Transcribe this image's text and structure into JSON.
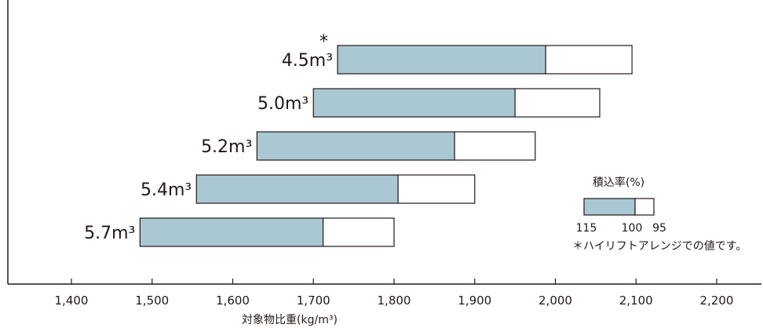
{
  "chart_data": {
    "type": "bar",
    "orientation": "horizontal-range",
    "xlabel": "対象物比重(kg/m³)",
    "xticks": [
      "1,400",
      "1,500",
      "1,600",
      "1,700",
      "1,800",
      "1,900",
      "2,000",
      "2,100",
      "2,200"
    ],
    "xlim": [
      1400,
      2200
    ],
    "categories": [
      "4.5m³",
      "5.0m³",
      "5.2m³",
      "5.4m³",
      "5.7m³"
    ],
    "asterisk": "*",
    "series": [
      {
        "name": "115",
        "values": [
          1730,
          1700,
          1630,
          1555,
          1485
        ],
        "color": "#aac8d4"
      },
      {
        "name": "100",
        "values": [
          1988,
          1950,
          1875,
          1805,
          1712
        ],
        "color": "#aac8d4"
      },
      {
        "name": "95",
        "values": [
          2095,
          2055,
          1975,
          1900,
          1800
        ],
        "color": "#ffffff"
      }
    ],
    "legend": {
      "title": "積込率(%)",
      "labels": [
        "115",
        "100",
        "95"
      ],
      "note": "＊ハイリフトアレンジでの値です。",
      "placement": "right"
    },
    "grid": false
  }
}
